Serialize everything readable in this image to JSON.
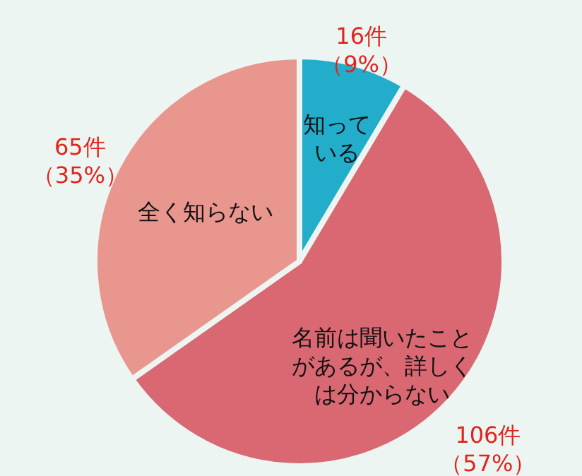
{
  "chart_data": {
    "type": "pie",
    "categories": [
      "知っている",
      "名前は聞いたことがあるが、詳しくは分からない",
      "全く知らない"
    ],
    "values": [
      16,
      106,
      65
    ],
    "colors": [
      "#22adcb",
      "#d96873",
      "#e9968f"
    ],
    "value_labels": [
      "16件（9%）",
      "106件（57%）",
      "65件（35%）"
    ]
  }
}
